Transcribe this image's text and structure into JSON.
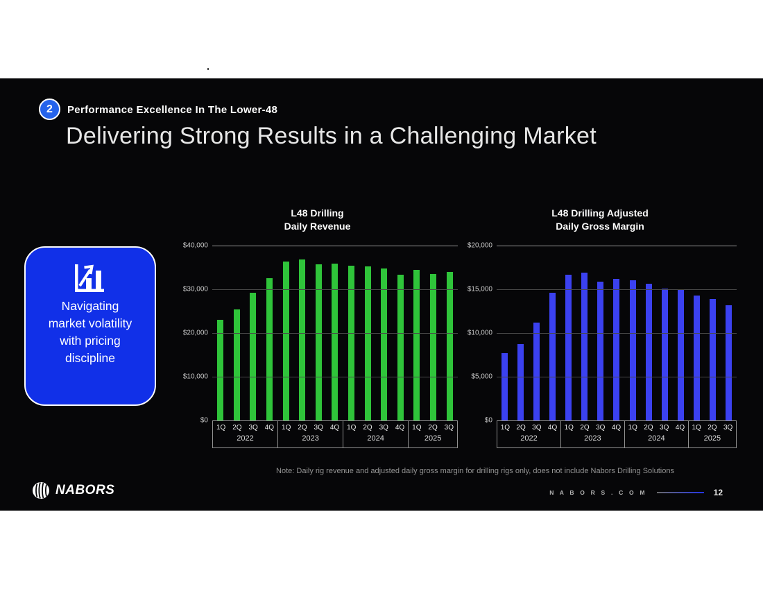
{
  "slide": {
    "eyebrow": {
      "number": "2",
      "label": "Performance Excellence In The Lower-48"
    },
    "title": "Delivering Strong Results in a Challenging Market",
    "callout": {
      "text": "Navigating market volatility with pricing discipline"
    },
    "note": "Note: Daily rig revenue and adjusted daily gross margin for drilling rigs only, does not include Nabors Drilling Solutions",
    "footer": {
      "brand": "NABORS",
      "site": "N A B O R S . C O M",
      "page": "12"
    }
  },
  "colors": {
    "callout_blue": "#1130e8",
    "eyebrow_circle_blue": "#2563eb",
    "bar_green": "#2fc43a",
    "bar_blue": "#3b41f0"
  },
  "icons": {
    "callout_icon": "bar-chart-growth-icon",
    "brand_icon": "nabors-globe-icon"
  },
  "chart_data": [
    {
      "type": "bar",
      "title": "L48 Drilling\nDaily Revenue",
      "bar_color": "#2fc43a",
      "ylim": [
        0,
        40000
      ],
      "grid": true,
      "yticks": [
        {
          "label": "$40,000",
          "value": 40000
        },
        {
          "label": "$30,000",
          "value": 30000
        },
        {
          "label": "$20,000",
          "value": 20000
        },
        {
          "label": "$10,000",
          "value": 10000
        },
        {
          "label": "$0",
          "value": 0
        }
      ],
      "groups": [
        {
          "year": "2022",
          "quarters": [
            "1Q",
            "2Q",
            "3Q",
            "4Q"
          ],
          "values": [
            23000,
            25400,
            29200,
            32600
          ]
        },
        {
          "year": "2023",
          "quarters": [
            "1Q",
            "2Q",
            "3Q",
            "4Q"
          ],
          "values": [
            36400,
            36800,
            35700,
            35800
          ]
        },
        {
          "year": "2024",
          "quarters": [
            "1Q",
            "2Q",
            "3Q",
            "4Q"
          ],
          "values": [
            35400,
            35300,
            34800,
            33400
          ]
        },
        {
          "year": "2025",
          "quarters": [
            "1Q",
            "2Q",
            "3Q"
          ],
          "values": [
            34500,
            33500,
            33900
          ]
        }
      ]
    },
    {
      "type": "bar",
      "title": "L48 Drilling Adjusted\nDaily Gross Margin",
      "bar_color": "#3b41f0",
      "ylim": [
        0,
        20000
      ],
      "grid": true,
      "yticks": [
        {
          "label": "$20,000",
          "value": 20000
        },
        {
          "label": "$15,000",
          "value": 15000
        },
        {
          "label": "$10,000",
          "value": 10000
        },
        {
          "label": "$5,000",
          "value": 5000
        },
        {
          "label": "$0",
          "value": 0
        }
      ],
      "groups": [
        {
          "year": "2022",
          "quarters": [
            "1Q",
            "2Q",
            "3Q",
            "4Q"
          ],
          "values": [
            7700,
            8700,
            11200,
            14600
          ]
        },
        {
          "year": "2023",
          "quarters": [
            "1Q",
            "2Q",
            "3Q",
            "4Q"
          ],
          "values": [
            16700,
            16900,
            15900,
            16200
          ]
        },
        {
          "year": "2024",
          "quarters": [
            "1Q",
            "2Q",
            "3Q",
            "4Q"
          ],
          "values": [
            16000,
            15600,
            15100,
            15000
          ]
        },
        {
          "year": "2025",
          "quarters": [
            "1Q",
            "2Q",
            "3Q"
          ],
          "values": [
            14300,
            13900,
            13200
          ]
        }
      ]
    }
  ]
}
